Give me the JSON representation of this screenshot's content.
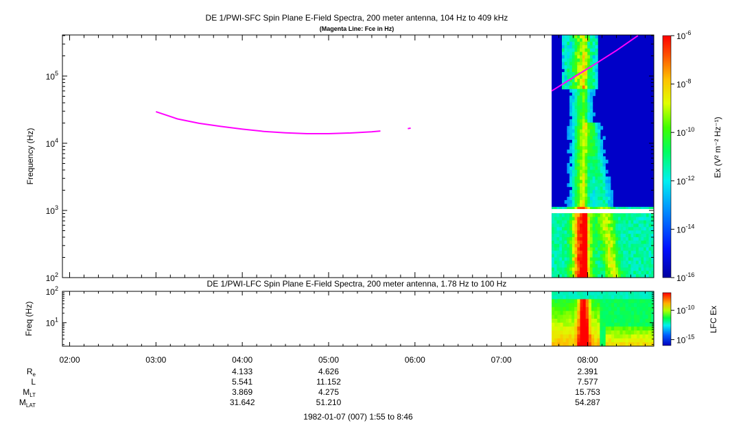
{
  "chart_data": [
    {
      "type": "heatmap",
      "title": "DE 1/PWI-SFC  Spin Plane E-Field Spectra, 200 meter antenna, 104 Hz to 409 kHz",
      "subtitle": "(Magenta Line: Fce in Hz)",
      "ylabel": "Frequency (Hz)",
      "yscale": "log",
      "ylim": [
        100,
        409000
      ],
      "yticks": [
        {
          "value": 100,
          "base": "10",
          "exp": "2"
        },
        {
          "value": 1000,
          "base": "10",
          "exp": "3"
        },
        {
          "value": 10000,
          "base": "10",
          "exp": "4"
        },
        {
          "value": 100000,
          "base": "10",
          "exp": "5"
        }
      ],
      "colorbar": {
        "label": "Ex (V² m⁻² Hz⁻¹)",
        "scale": "log",
        "range": [
          1e-16,
          1e-06
        ],
        "ticks": [
          {
            "value": 1e-06,
            "base": "10",
            "exp": "-6"
          },
          {
            "value": 1e-08,
            "base": "10",
            "exp": "-8"
          },
          {
            "value": 1e-10,
            "base": "10",
            "exp": "-10"
          },
          {
            "value": 1e-12,
            "base": "10",
            "exp": "-12"
          },
          {
            "value": 1e-14,
            "base": "10",
            "exp": "-14"
          },
          {
            "value": 1e-16,
            "base": "10",
            "exp": "-16"
          }
        ]
      },
      "data_coverage_start": "07:35",
      "fce_line": {
        "color": "#ff00ff",
        "segments": [
          [
            [
              "03:00",
              29500
            ],
            [
              "03:15",
              23000
            ],
            [
              "03:30",
              19800
            ],
            [
              "03:45",
              17800
            ],
            [
              "04:00",
              16200
            ],
            [
              "04:15",
              15000
            ],
            [
              "04:30",
              14300
            ],
            [
              "04:45",
              13900
            ],
            [
              "05:00",
              13900
            ],
            [
              "05:15",
              14200
            ],
            [
              "05:30",
              14800
            ],
            [
              "05:36",
              15200
            ]
          ],
          [
            [
              "05:55",
              16500
            ],
            [
              "05:57",
              16800
            ]
          ],
          [
            [
              "07:35",
              60000
            ],
            [
              "07:50",
              95000
            ],
            [
              "08:05",
              150000
            ],
            [
              "08:20",
              240000
            ],
            [
              "08:35",
              400000
            ]
          ]
        ]
      }
    },
    {
      "type": "heatmap",
      "title": "DE 1/PWI-LFC  Spin Plane E-Field Spectra, 200 meter antenna, 1.78 Hz to 100 Hz",
      "ylabel": "Freq (Hz)",
      "yscale": "log",
      "ylim": [
        1.78,
        100
      ],
      "yticks": [
        {
          "value": 10,
          "base": "10",
          "exp": "1"
        },
        {
          "value": 100,
          "base": "10",
          "exp": "2"
        }
      ],
      "colorbar": {
        "label": "LFC Ex",
        "scale": "log",
        "range": [
          1e-16,
          1e-07
        ],
        "ticks": [
          {
            "value": 1e-10,
            "base": "10",
            "exp": "-10"
          },
          {
            "value": 1e-15,
            "base": "10",
            "exp": "-15"
          }
        ]
      },
      "data_coverage_start": "07:35"
    }
  ],
  "time_axis": {
    "range": [
      "01:55",
      "08:46"
    ],
    "tick_labels": [
      "02:00",
      "03:00",
      "04:00",
      "05:00",
      "06:00",
      "07:00",
      "08:00"
    ],
    "date_label": "1982-01-07 (007) 1:55 to 8:46"
  },
  "ephemeris": {
    "rows": [
      {
        "name": "R",
        "sub": "e",
        "values": [
          {
            "t": "04:00",
            "v": "4.133"
          },
          {
            "t": "05:00",
            "v": "4.626"
          },
          {
            "t": "08:00",
            "v": "2.391"
          }
        ]
      },
      {
        "name": "L",
        "sub": "",
        "values": [
          {
            "t": "04:00",
            "v": "5.541"
          },
          {
            "t": "05:00",
            "v": "11.152"
          },
          {
            "t": "08:00",
            "v": "7.577"
          }
        ]
      },
      {
        "name": "M",
        "sub": "LT",
        "values": [
          {
            "t": "04:00",
            "v": "3.869"
          },
          {
            "t": "05:00",
            "v": "4.275"
          },
          {
            "t": "08:00",
            "v": "15.753"
          }
        ]
      },
      {
        "name": "M",
        "sub": "LAT",
        "values": [
          {
            "t": "04:00",
            "v": "31.642"
          },
          {
            "t": "05:00",
            "v": "51.210"
          },
          {
            "t": "08:00",
            "v": "54.287"
          }
        ]
      }
    ]
  }
}
